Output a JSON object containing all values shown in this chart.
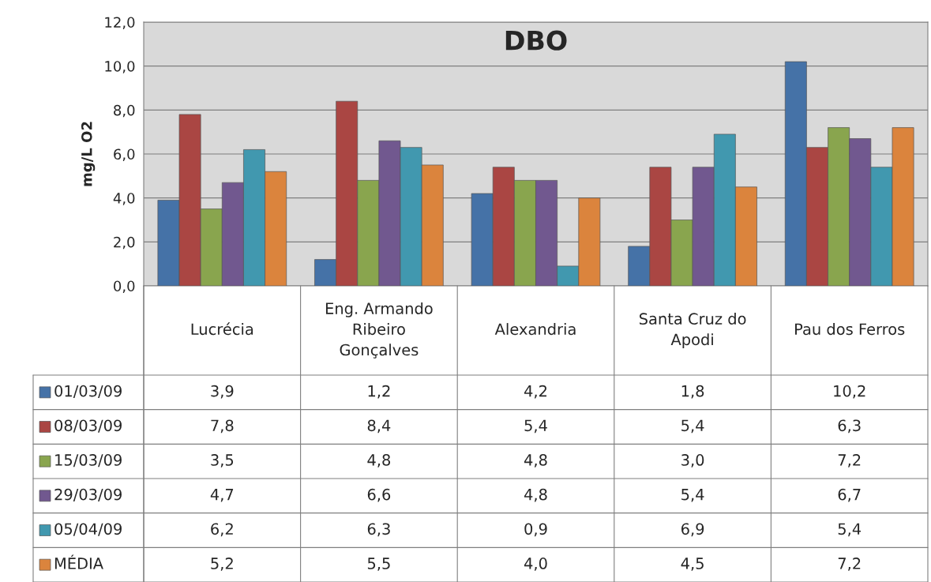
{
  "chart_data": {
    "type": "bar",
    "title": "DBO",
    "ylabel": "mg/L O2",
    "categories": [
      "Lucrécia",
      "Eng. Armando Ribeiro Gonçalves",
      "Alexandria",
      "Santa Cruz do Apodi",
      "Pau dos Ferros"
    ],
    "series": [
      {
        "name": "01/03/09",
        "color": "#4572a7",
        "values": [
          3.9,
          1.2,
          4.2,
          1.8,
          10.2
        ],
        "value_labels": [
          "3,9",
          "1,2",
          "4,2",
          "1,8",
          "10,2"
        ]
      },
      {
        "name": "08/03/09",
        "color": "#aa4643",
        "values": [
          7.8,
          8.4,
          5.4,
          5.4,
          6.3
        ],
        "value_labels": [
          "7,8",
          "8,4",
          "5,4",
          "5,4",
          "6,3"
        ]
      },
      {
        "name": "15/03/09",
        "color": "#89a54e",
        "values": [
          3.5,
          4.8,
          4.8,
          3.0,
          7.2
        ],
        "value_labels": [
          "3,5",
          "4,8",
          "4,8",
          "3,0",
          "7,2"
        ]
      },
      {
        "name": "29/03/09",
        "color": "#71588f",
        "values": [
          4.7,
          6.6,
          4.8,
          5.4,
          6.7
        ],
        "value_labels": [
          "4,7",
          "6,6",
          "4,8",
          "5,4",
          "6,7"
        ]
      },
      {
        "name": "05/04/09",
        "color": "#4198af",
        "values": [
          6.2,
          6.3,
          0.9,
          6.9,
          5.4
        ],
        "value_labels": [
          "6,2",
          "6,3",
          "0,9",
          "6,9",
          "5,4"
        ]
      },
      {
        "name": "MÉDIA",
        "color": "#db843d",
        "values": [
          5.2,
          5.5,
          4.0,
          4.5,
          7.2
        ],
        "value_labels": [
          "5,2",
          "5,5",
          "4,0",
          "4,5",
          "7,2"
        ]
      }
    ],
    "ylim": [
      0,
      12
    ],
    "yticks": [
      {
        "value": 0,
        "label": "0,0"
      },
      {
        "value": 2,
        "label": "2,0"
      },
      {
        "value": 4,
        "label": "4,0"
      },
      {
        "value": 6,
        "label": "6,0"
      },
      {
        "value": 8,
        "label": "8,0"
      },
      {
        "value": 10,
        "label": "10,0"
      },
      {
        "value": 12,
        "label": "12,0"
      }
    ],
    "grid": "y",
    "legend": "bottom"
  }
}
